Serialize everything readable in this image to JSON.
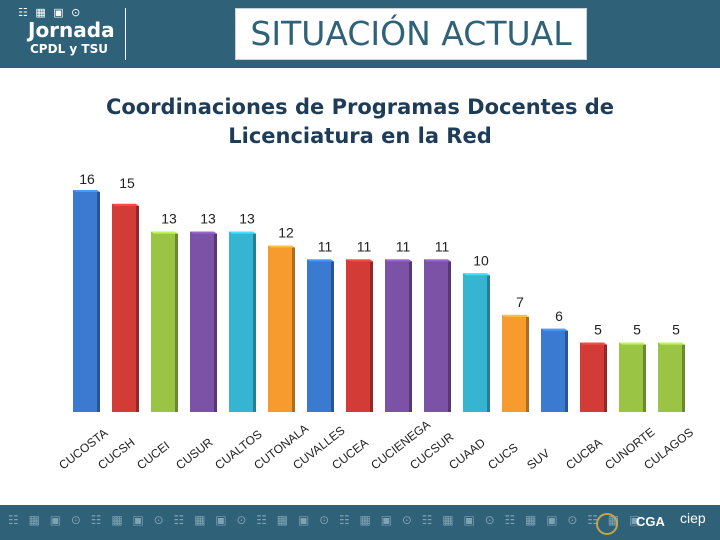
{
  "header": {
    "logo_title": "Jornada",
    "logo_subtitle": "CPDL y TSU",
    "logo_icons": "☷ ▦ ▣ ⊙",
    "title": "SITUACIÓN ACTUAL"
  },
  "footer": {
    "org_cga": "CGA",
    "org_ciep": "ciep",
    "icons": "☷ ▦ ▣ ⊙ ☷ ▦ ▣ ⊙ ☷ ▦ ▣ ⊙ ☷ ▦ ▣ ⊙ ☷ ▦ ▣ ⊙ ☷ ▦ ▣ ⊙ ☷ ▦ ▣ ⊙ ☷ ▦ ▣"
  },
  "chart_data": {
    "type": "bar",
    "title_line1": "Coordinaciones de Programas Docentes de",
    "title_line2": "Licenciatura en la Red",
    "categories": [
      "CUCOSTA",
      "CUCSH",
      "CUCEI",
      "CUSUR",
      "CUALTOS",
      "CUTONALA",
      "CUVALLES",
      "CUCEA",
      "CUCIENEGA",
      "CUCSUR",
      "CUAAD",
      "CUCS",
      "SUV",
      "CUCBA",
      "CUNORTE",
      "CULAGOS"
    ],
    "values": [
      16,
      15,
      13,
      13,
      13,
      12,
      11,
      11,
      11,
      11,
      10,
      7,
      6,
      5,
      5,
      5
    ],
    "colors": [
      "#3b7ad1",
      "#d23b36",
      "#99c444",
      "#7b52a6",
      "#35b5d2",
      "#f79b2e",
      "#3b7ad1",
      "#d23b36",
      "#7b52a6",
      "#7b52a6",
      "#35b5d2",
      "#f79b2e",
      "#3b7ad1",
      "#d23b36",
      "#99c444",
      "#99c444"
    ],
    "ylim": [
      0,
      16
    ],
    "xlabel": "",
    "ylabel": ""
  }
}
